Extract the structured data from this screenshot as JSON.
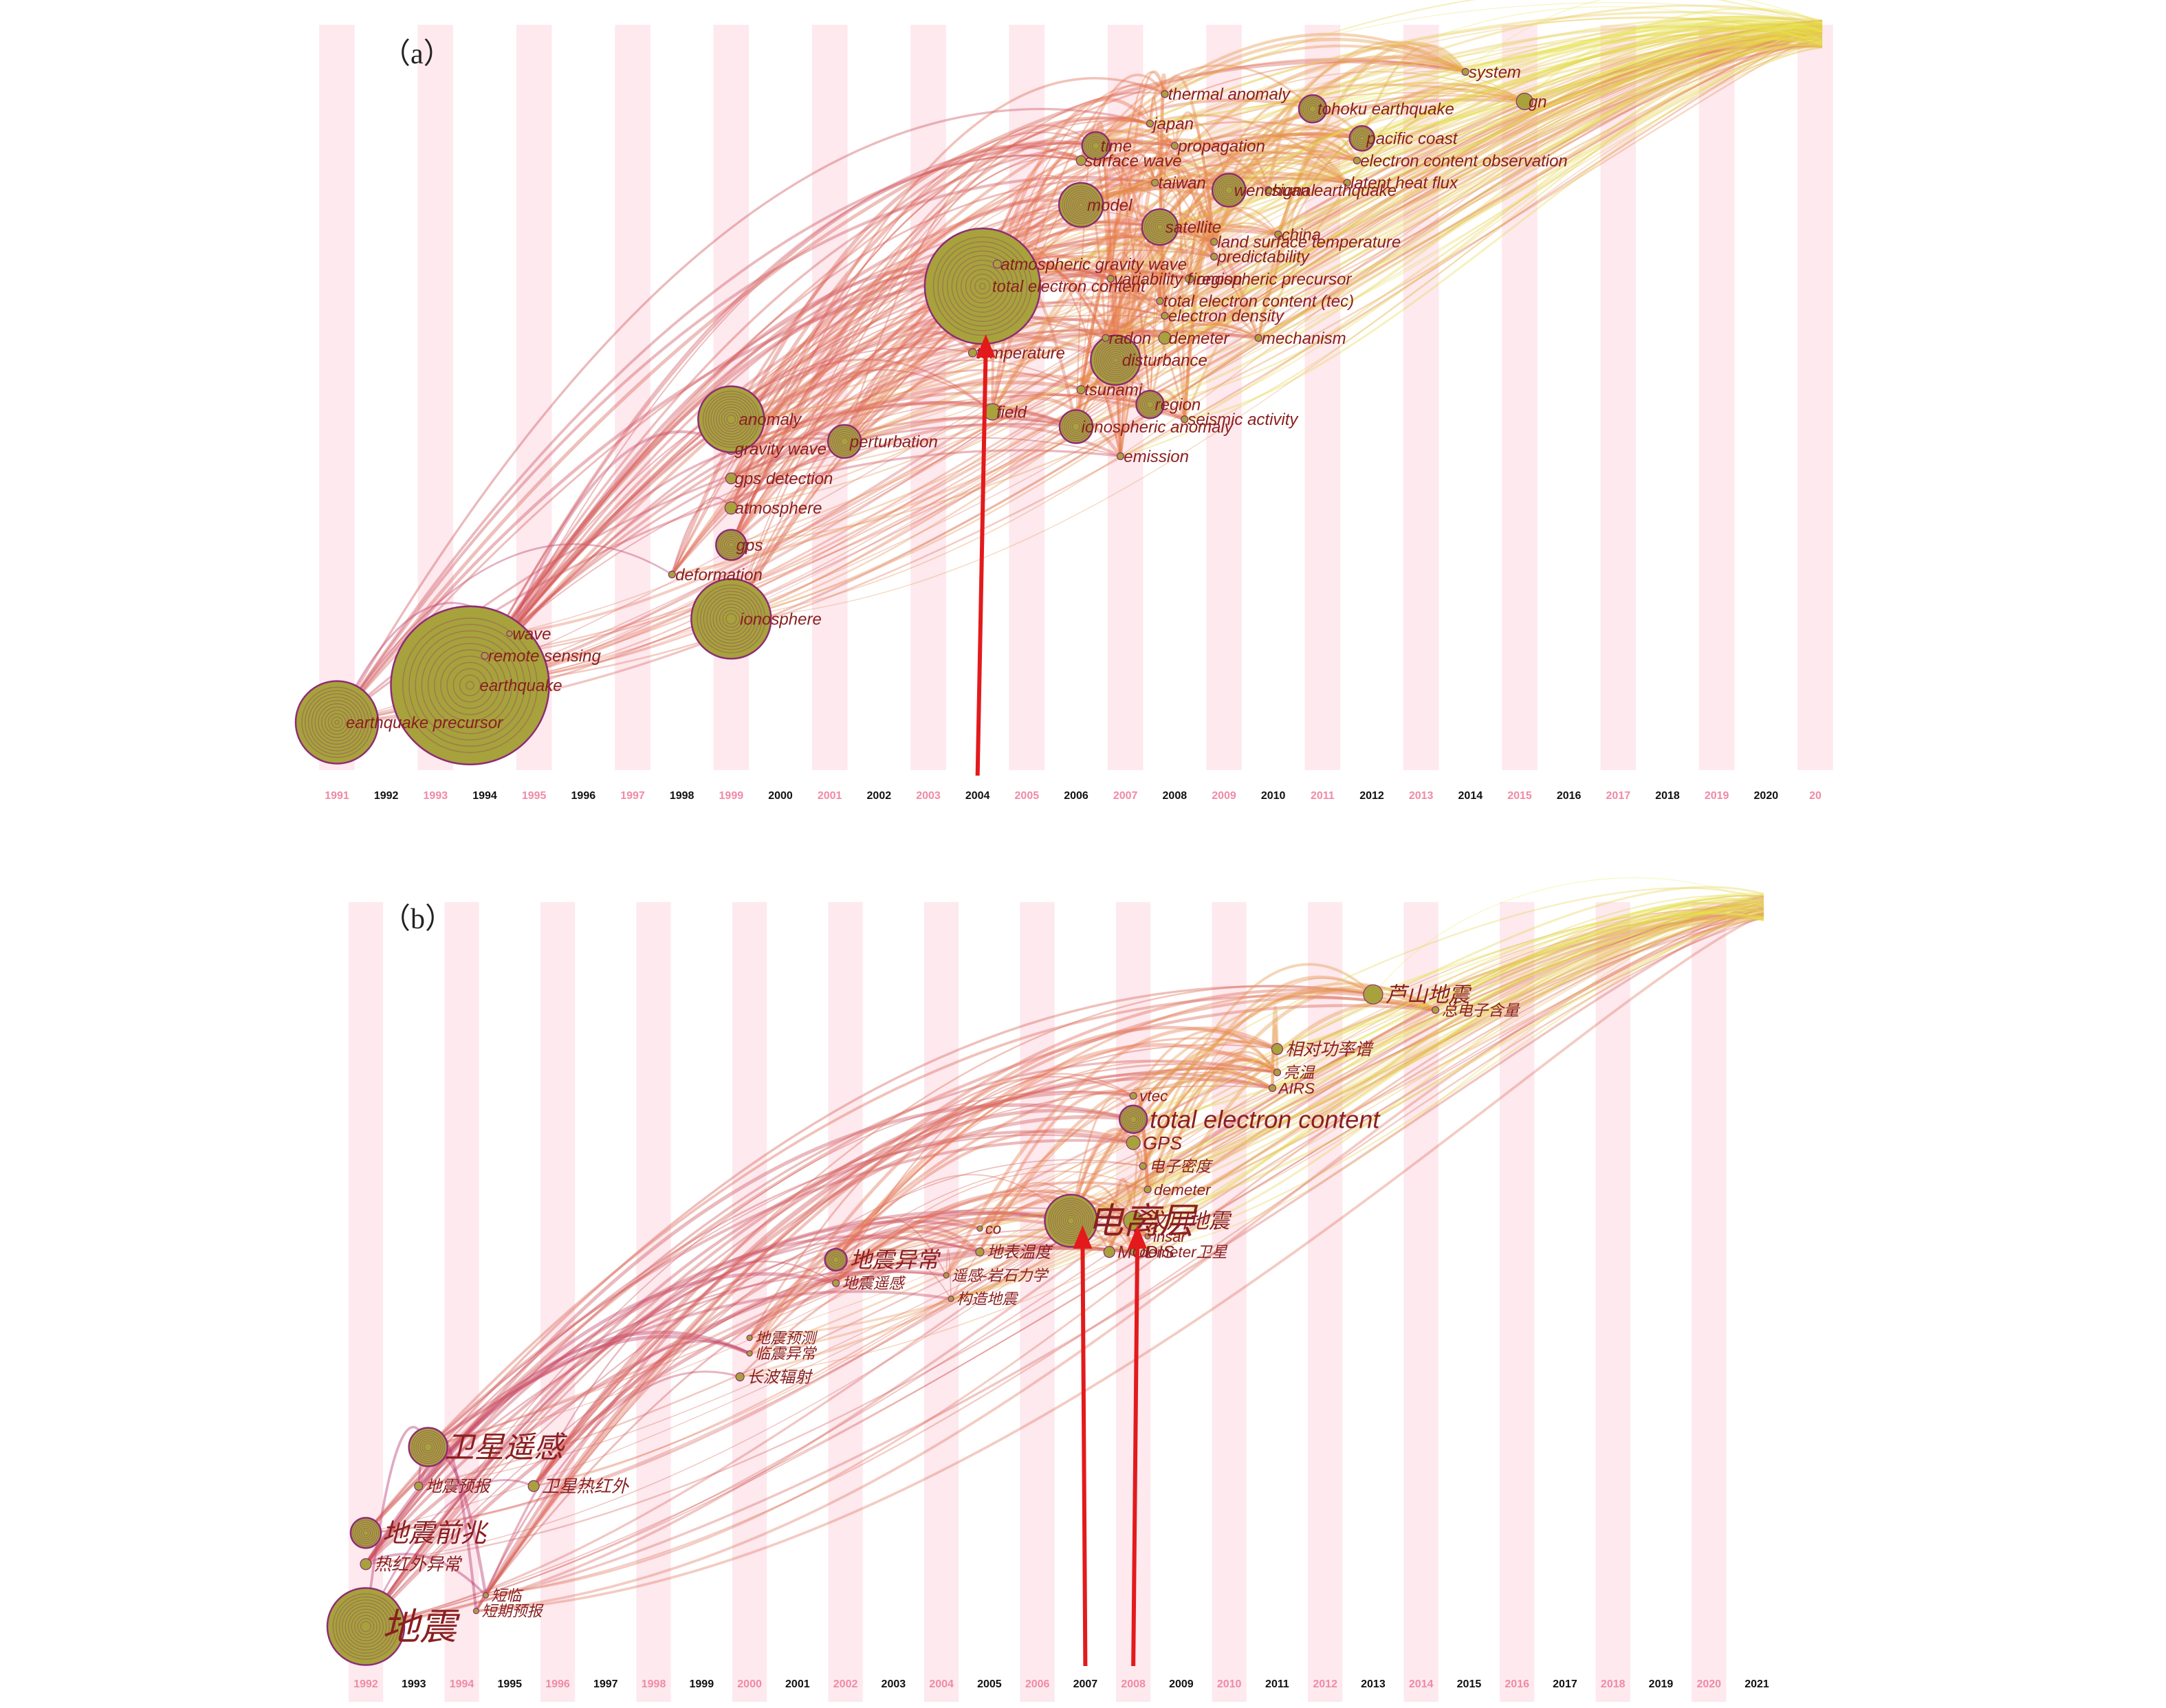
{
  "figure": {
    "colors": {
      "stripe": "#fde9ee",
      "old": "#b0246d",
      "mid": "#e5744d",
      "new": "#e6e84a",
      "node_fill": "#a7a23c",
      "node_stroke": "#8e2c74",
      "label": "#8a1f20",
      "year_odd": "#f08aa6",
      "year_even": "#111111",
      "arrow": "#e31a1c"
    }
  },
  "chart_data": [
    {
      "type": "scatter",
      "panel_label": "（a）",
      "x_categories": [
        "1991",
        "1992",
        "1993",
        "1994",
        "1995",
        "1996",
        "1997",
        "1998",
        "1999",
        "2000",
        "2001",
        "2002",
        "2003",
        "2004",
        "2005",
        "2006",
        "2007",
        "2008",
        "2009",
        "2010",
        "2011",
        "2012",
        "2013",
        "2014",
        "2015",
        "2016",
        "2017",
        "2018",
        "2019",
        "2020",
        "20"
      ],
      "x_range": [
        1991,
        2021
      ],
      "nodes": [
        {
          "label": "earthquake precursor",
          "year": 1991.0,
          "y": 0.06,
          "size": 60
        },
        {
          "label": "earthquake",
          "year": 1993.7,
          "y": 0.11,
          "size": 115
        },
        {
          "label": "remote sensing",
          "year": 1994.0,
          "y": 0.15,
          "size": 5
        },
        {
          "label": "wave",
          "year": 1994.5,
          "y": 0.18,
          "size": 4
        },
        {
          "label": "ionosphere",
          "year": 1999.0,
          "y": 0.2,
          "size": 58
        },
        {
          "label": "deformation",
          "year": 1997.8,
          "y": 0.26,
          "size": 5
        },
        {
          "label": "gps",
          "year": 1999.0,
          "y": 0.3,
          "size": 22
        },
        {
          "label": "atmosphere",
          "year": 1999.0,
          "y": 0.35,
          "size": 9
        },
        {
          "label": "gps detection",
          "year": 1999.0,
          "y": 0.39,
          "size": 8
        },
        {
          "label": "gravity wave",
          "year": 1999.0,
          "y": 0.43,
          "size": 8
        },
        {
          "label": "anomaly",
          "year": 1999.0,
          "y": 0.47,
          "size": 48
        },
        {
          "label": "perturbation",
          "year": 2001.3,
          "y": 0.44,
          "size": 24
        },
        {
          "label": "field",
          "year": 2004.3,
          "y": 0.48,
          "size": 12
        },
        {
          "label": "emission",
          "year": 2006.9,
          "y": 0.42,
          "size": 5
        },
        {
          "label": "ionospheric anomaly",
          "year": 2006.0,
          "y": 0.46,
          "size": 24
        },
        {
          "label": "tsunami",
          "year": 2006.1,
          "y": 0.51,
          "size": 6
        },
        {
          "label": "temperature",
          "year": 2003.9,
          "y": 0.56,
          "size": 6
        },
        {
          "label": "total electron content",
          "year": 2004.1,
          "y": 0.65,
          "size": 84
        },
        {
          "label": "atmospheric gravity wave",
          "year": 2004.4,
          "y": 0.68,
          "size": 6
        },
        {
          "label": "seismic activity",
          "year": 2008.2,
          "y": 0.47,
          "size": 5
        },
        {
          "label": "region",
          "year": 2007.5,
          "y": 0.49,
          "size": 20
        },
        {
          "label": "disturbance",
          "year": 2006.8,
          "y": 0.55,
          "size": 36
        },
        {
          "label": "radon",
          "year": 2006.6,
          "y": 0.58,
          "size": 5
        },
        {
          "label": "demeter",
          "year": 2007.8,
          "y": 0.58,
          "size": 9
        },
        {
          "label": "mechanism",
          "year": 2009.7,
          "y": 0.58,
          "size": 5
        },
        {
          "label": "electron density",
          "year": 2007.8,
          "y": 0.61,
          "size": 5
        },
        {
          "label": "total electron content (tec)",
          "year": 2007.7,
          "y": 0.63,
          "size": 5
        },
        {
          "label": "ionospheric precursor",
          "year": 2008.3,
          "y": 0.66,
          "size": 6
        },
        {
          "label": "variability f region",
          "year": 2006.7,
          "y": 0.66,
          "size": 5
        },
        {
          "label": "predictability",
          "year": 2008.8,
          "y": 0.69,
          "size": 5
        },
        {
          "label": "land surface temperature",
          "year": 2008.8,
          "y": 0.71,
          "size": 5
        },
        {
          "label": "china",
          "year": 2010.1,
          "y": 0.72,
          "size": 5
        },
        {
          "label": "satellite",
          "year": 2007.7,
          "y": 0.73,
          "size": 26
        },
        {
          "label": "model",
          "year": 2006.1,
          "y": 0.76,
          "size": 32
        },
        {
          "label": "wenchuan earthquake",
          "year": 2009.1,
          "y": 0.78,
          "size": 24
        },
        {
          "label": "signal",
          "year": 2009.9,
          "y": 0.78,
          "size": 5
        },
        {
          "label": "latent heat flux",
          "year": 2011.5,
          "y": 0.79,
          "size": 5
        },
        {
          "label": "taiwan",
          "year": 2007.6,
          "y": 0.79,
          "size": 5
        },
        {
          "label": "surface wave",
          "year": 2006.1,
          "y": 0.82,
          "size": 7
        },
        {
          "label": "electron content observation",
          "year": 2011.7,
          "y": 0.82,
          "size": 5
        },
        {
          "label": "time",
          "year": 2006.4,
          "y": 0.84,
          "size": 20
        },
        {
          "label": "propagation",
          "year": 2008.0,
          "y": 0.84,
          "size": 5
        },
        {
          "label": "pacific coast",
          "year": 2011.8,
          "y": 0.85,
          "size": 18
        },
        {
          "label": "japan",
          "year": 2007.5,
          "y": 0.87,
          "size": 5
        },
        {
          "label": "tohoku earthquake",
          "year": 2010.8,
          "y": 0.89,
          "size": 20
        },
        {
          "label": "thermal anomaly",
          "year": 2007.8,
          "y": 0.91,
          "size": 5
        },
        {
          "label": "gn",
          "year": 2015.1,
          "y": 0.9,
          "size": 12
        },
        {
          "label": "system",
          "year": 2013.9,
          "y": 0.94,
          "size": 5
        }
      ],
      "arrows": [
        {
          "year": 2004.0
        }
      ]
    },
    {
      "type": "scatter",
      "panel_label": "（b）",
      "x_categories": [
        "1992",
        "1993",
        "1994",
        "1995",
        "1996",
        "1997",
        "1998",
        "1999",
        "2000",
        "2001",
        "2002",
        "2003",
        "2004",
        "2005",
        "2006",
        "2007",
        "2008",
        "2009",
        "2010",
        "2011",
        "2012",
        "2013",
        "2014",
        "2015",
        "2016",
        "2017",
        "2018",
        "2019",
        "2020",
        "2021"
      ],
      "x_range": [
        1992,
        2021
      ],
      "nodes": [
        {
          "label": "地震",
          "year": 1992.0,
          "y": 0.07,
          "size": 56
        },
        {
          "label": "热红外异常",
          "year": 1992.0,
          "y": 0.15,
          "size": 8
        },
        {
          "label": "短临",
          "year": 1994.5,
          "y": 0.11,
          "size": 4
        },
        {
          "label": "短期预报",
          "year": 1994.3,
          "y": 0.09,
          "size": 4
        },
        {
          "label": "地震前兆",
          "year": 1992.0,
          "y": 0.19,
          "size": 22
        },
        {
          "label": "地震预报",
          "year": 1993.1,
          "y": 0.25,
          "size": 6
        },
        {
          "label": "卫星热红外",
          "year": 1995.5,
          "y": 0.25,
          "size": 8
        },
        {
          "label": "卫星遥感",
          "year": 1993.3,
          "y": 0.3,
          "size": 28
        },
        {
          "label": "长波辐射",
          "year": 1999.8,
          "y": 0.39,
          "size": 6
        },
        {
          "label": "地震预测",
          "year": 2000.0,
          "y": 0.44,
          "size": 4
        },
        {
          "label": "临震异常",
          "year": 2000.0,
          "y": 0.42,
          "size": 4
        },
        {
          "label": "地震异常",
          "year": 2001.8,
          "y": 0.54,
          "size": 16
        },
        {
          "label": "地震遥感",
          "year": 2001.8,
          "y": 0.51,
          "size": 5
        },
        {
          "label": "遥感-岩石力学",
          "year": 2004.1,
          "y": 0.52,
          "size": 4
        },
        {
          "label": "构造地震",
          "year": 2004.2,
          "y": 0.49,
          "size": 4
        },
        {
          "label": "地表温度",
          "year": 2004.8,
          "y": 0.55,
          "size": 6
        },
        {
          "label": "co",
          "year": 2004.8,
          "y": 0.58,
          "size": 4
        },
        {
          "label": "MODIS",
          "year": 2007.5,
          "y": 0.55,
          "size": 8
        },
        {
          "label": "电离层",
          "year": 2006.7,
          "y": 0.59,
          "size": 38
        },
        {
          "label": "汶川地震",
          "year": 2008.0,
          "y": 0.59,
          "size": 14
        },
        {
          "label": "insar",
          "year": 2008.3,
          "y": 0.57,
          "size": 4
        },
        {
          "label": "demeter卫星",
          "year": 2008.0,
          "y": 0.55,
          "size": 5
        },
        {
          "label": "demeter",
          "year": 2008.3,
          "y": 0.63,
          "size": 5
        },
        {
          "label": "电子密度",
          "year": 2008.2,
          "y": 0.66,
          "size": 5
        },
        {
          "label": "GPS",
          "year": 2008.0,
          "y": 0.69,
          "size": 10
        },
        {
          "label": "total electron content",
          "year": 2008.0,
          "y": 0.72,
          "size": 20
        },
        {
          "label": "vtec",
          "year": 2008.0,
          "y": 0.75,
          "size": 5
        },
        {
          "label": "AIRS",
          "year": 2010.9,
          "y": 0.76,
          "size": 5
        },
        {
          "label": "亮温",
          "year": 2011.0,
          "y": 0.78,
          "size": 5
        },
        {
          "label": "相对功率谱",
          "year": 2011.0,
          "y": 0.81,
          "size": 8
        },
        {
          "label": "芦山地震",
          "year": 2013.0,
          "y": 0.88,
          "size": 14
        },
        {
          "label": "总电子含量",
          "year": 2014.3,
          "y": 0.86,
          "size": 5
        }
      ],
      "arrows": [
        {
          "year": 2007.0
        },
        {
          "year": 2008.0
        }
      ]
    }
  ]
}
